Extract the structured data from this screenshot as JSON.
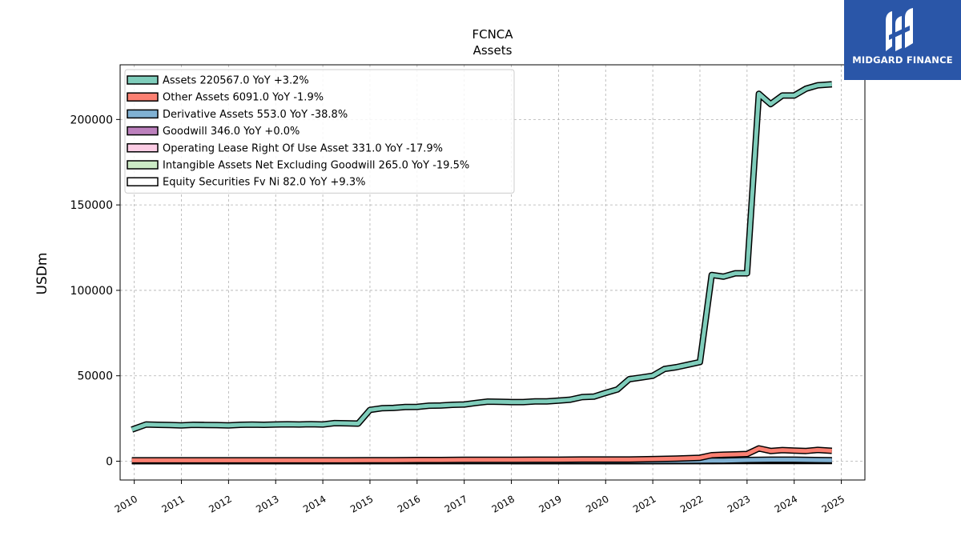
{
  "chart_data": {
    "type": "line",
    "title": "FCNCA",
    "subtitle": "Assets",
    "ylabel": "USDm",
    "xlabel": "",
    "xlim": [
      2009.7,
      2025.5
    ],
    "ylim": [
      -11000,
      232000
    ],
    "x_ticks": [
      "2010",
      "2011",
      "2012",
      "2013",
      "2014",
      "2015",
      "2016",
      "2017",
      "2018",
      "2019",
      "2020",
      "2021",
      "2022",
      "2023",
      "2024",
      "2025"
    ],
    "y_ticks": [
      "0",
      "50000",
      "100000",
      "150000",
      "200000"
    ],
    "grid": true,
    "legend_position": "top-left",
    "series": [
      {
        "name": "Assets",
        "legend_label": "Assets  220567.0 YoY +3.2%",
        "color": "#7fcdbb",
        "x": [
          2009.95,
          2010.25,
          2010.5,
          2010.75,
          2011.0,
          2011.25,
          2011.5,
          2011.75,
          2012.0,
          2012.25,
          2012.5,
          2012.75,
          2013.0,
          2013.25,
          2013.5,
          2013.75,
          2014.0,
          2014.25,
          2014.5,
          2014.75,
          2015.0,
          2015.25,
          2015.5,
          2015.75,
          2016.0,
          2016.25,
          2016.5,
          2016.75,
          2017.0,
          2017.25,
          2017.5,
          2017.75,
          2018.0,
          2018.25,
          2018.5,
          2018.75,
          2019.0,
          2019.25,
          2019.5,
          2019.75,
          2020.0,
          2020.25,
          2020.5,
          2020.75,
          2021.0,
          2021.25,
          2021.5,
          2021.75,
          2022.0,
          2022.25,
          2022.5,
          2022.75,
          2023.0,
          2023.25,
          2023.5,
          2023.75,
          2024.0,
          2024.25,
          2024.5,
          2024.8
        ],
        "y": [
          18500,
          21500,
          21300,
          21200,
          21000,
          21300,
          21200,
          21100,
          21000,
          21300,
          21400,
          21300,
          21500,
          21600,
          21500,
          21700,
          21500,
          22300,
          22200,
          22000,
          30000,
          31000,
          31200,
          31700,
          31800,
          32500,
          32600,
          33000,
          33200,
          34100,
          34900,
          34800,
          34600,
          34600,
          35000,
          35000,
          35500,
          36000,
          37500,
          37800,
          40000,
          42000,
          48000,
          49000,
          50000,
          54000,
          55000,
          56500,
          58000,
          109000,
          108000,
          110000,
          110000,
          215000,
          209000,
          214000,
          214000,
          218000,
          220000,
          220567
        ]
      },
      {
        "name": "Other Assets",
        "legend_label": "Other Assets  6091.0 YoY -1.9%",
        "color": "#fb8072",
        "x": [
          2009.95,
          2010.5,
          2011.0,
          2011.5,
          2012.0,
          2012.5,
          2013.0,
          2013.5,
          2014.0,
          2014.5,
          2015.0,
          2015.5,
          2016.0,
          2016.5,
          2017.0,
          2017.5,
          2018.0,
          2018.5,
          2019.0,
          2019.5,
          2020.0,
          2020.5,
          2021.0,
          2021.5,
          2022.0,
          2022.25,
          2022.5,
          2022.75,
          2023.0,
          2023.25,
          2023.5,
          2023.75,
          2024.0,
          2024.25,
          2024.5,
          2024.8
        ],
        "y": [
          500,
          500,
          500,
          500,
          500,
          500,
          500,
          500,
          500,
          500,
          600,
          600,
          700,
          700,
          800,
          800,
          800,
          900,
          900,
          1000,
          1000,
          1000,
          1200,
          1500,
          2000,
          3500,
          3800,
          4000,
          4200,
          7500,
          6000,
          6500,
          6200,
          6000,
          6600,
          6091
        ]
      },
      {
        "name": "Derivative Assets",
        "legend_label": "Derivative Assets  553.0 YoY -38.8%",
        "color": "#80b1d3",
        "x": [
          2009.95,
          2012.0,
          2014.0,
          2016.0,
          2018.0,
          2020.0,
          2021.0,
          2022.0,
          2022.5,
          2023.0,
          2023.5,
          2024.0,
          2024.8
        ],
        "y": [
          100,
          100,
          100,
          150,
          150,
          200,
          200,
          300,
          400,
          700,
          900,
          900,
          553
        ]
      },
      {
        "name": "Goodwill",
        "legend_label": "Goodwill  346.0 YoY +0.0%",
        "color": "#bc80bd",
        "x": [
          2009.95,
          2012.0,
          2014.0,
          2014.75,
          2016.0,
          2018.0,
          2020.0,
          2022.0,
          2022.5,
          2023.0,
          2024.0,
          2024.8
        ],
        "y": [
          100,
          100,
          100,
          150,
          200,
          250,
          300,
          346,
          346,
          346,
          346,
          346
        ]
      },
      {
        "name": "Operating Lease Right Of Use Asset",
        "legend_label": "Operating Lease Right Of Use Asset  331.0 YoY -17.9%",
        "color": "#fccde5",
        "x": [
          2019.0,
          2020.0,
          2021.0,
          2022.0,
          2023.0,
          2023.5,
          2024.0,
          2024.8
        ],
        "y": [
          150,
          200,
          200,
          250,
          400,
          420,
          400,
          331
        ]
      },
      {
        "name": "Intangible Assets Net Excluding Goodwill",
        "legend_label": "Intangible Assets Net Excluding Goodwill  265.0 YoY -19.5%",
        "color": "#ccebc5",
        "x": [
          2009.95,
          2011.0,
          2012.0,
          2013.0,
          2014.0,
          2015.0,
          2016.0,
          2017.0,
          2018.0,
          2019.0,
          2020.0,
          2021.0,
          2022.0,
          2023.0,
          2023.25,
          2024.0,
          2024.8
        ],
        "y": [
          50,
          50,
          50,
          50,
          50,
          100,
          100,
          100,
          100,
          80,
          60,
          50,
          80,
          300,
          350,
          330,
          265
        ]
      },
      {
        "name": "Equity Securities Fv Ni",
        "legend_label": "Equity Securities Fv Ni  82.0 YoY +9.3%",
        "color": "#ffffff",
        "x": [
          2018.0,
          2019.0,
          2020.0,
          2021.0,
          2022.0,
          2023.0,
          2024.0,
          2024.8
        ],
        "y": [
          50,
          60,
          70,
          75,
          80,
          75,
          75,
          82
        ]
      }
    ]
  },
  "branding": {
    "logo_text": "MIDGARD FINANCE",
    "logo_bg": "#2a56a8"
  }
}
